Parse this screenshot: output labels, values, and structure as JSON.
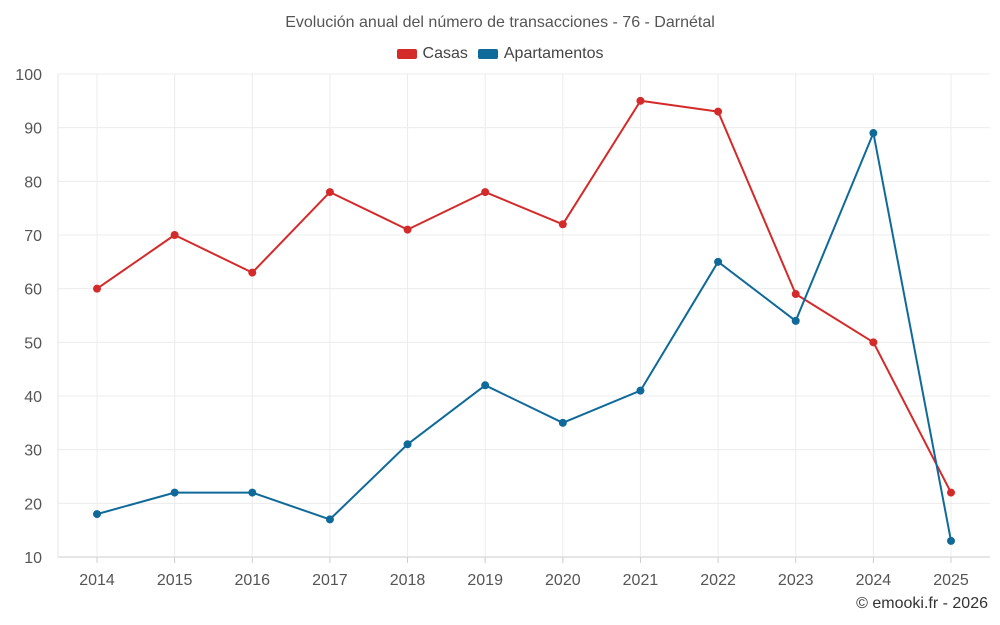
{
  "chart_data": {
    "type": "line",
    "title": "Evolución anual del número de transacciones - 76 - Darnétal",
    "categories": [
      "2014",
      "2015",
      "2016",
      "2017",
      "2018",
      "2019",
      "2020",
      "2021",
      "2022",
      "2023",
      "2024",
      "2025"
    ],
    "series": [
      {
        "name": "Casas",
        "color": "#d42a2a",
        "values": [
          60,
          70,
          63,
          78,
          71,
          78,
          72,
          95,
          93,
          59,
          50,
          22
        ]
      },
      {
        "name": "Apartamentos",
        "color": "#0f6a9a",
        "values": [
          18,
          22,
          22,
          17,
          31,
          42,
          35,
          41,
          65,
          54,
          89,
          13
        ]
      }
    ],
    "ylim": [
      10,
      100
    ],
    "yticks": [
      10,
      20,
      30,
      40,
      50,
      60,
      70,
      80,
      90,
      100
    ],
    "xlabel": "",
    "ylabel": "",
    "grid": true,
    "legend_position": "top-center"
  },
  "credit": "© emooki.fr - 2026"
}
